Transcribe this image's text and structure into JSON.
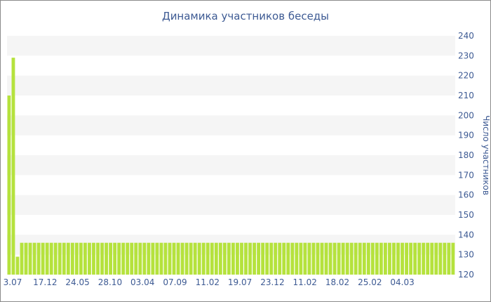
{
  "chart_data": {
    "type": "bar",
    "title": "Динамика участников беседы",
    "xlabel": "",
    "ylabel": "Число участников",
    "ylim": [
      120,
      240
    ],
    "y_ticks": [
      120,
      130,
      140,
      150,
      160,
      170,
      180,
      190,
      200,
      210,
      220,
      230,
      240
    ],
    "x_tick_labels": [
      "3.07",
      "17.12",
      "24.05",
      "28.10",
      "03.04",
      "07.09",
      "11.02",
      "19.07",
      "23.12",
      "11.02",
      "18.02",
      "25.02",
      "04.03"
    ],
    "y_axis_side": "right",
    "grid": "alternating horizontal bands",
    "bar_color": "#b5e23d",
    "band_color": "#f5f5f5",
    "text_color": "#3d5a93",
    "series": [
      {
        "values": [
          210,
          229,
          129,
          136,
          136,
          136,
          136,
          136,
          136,
          136,
          136,
          136,
          136,
          136,
          136,
          136,
          136,
          136,
          136,
          136,
          136,
          136,
          136,
          136,
          136,
          136,
          136,
          136,
          136,
          136,
          136,
          136,
          136,
          136,
          136,
          136,
          136,
          136,
          136,
          136,
          136,
          136,
          136,
          136,
          136,
          136,
          136,
          136,
          136,
          136,
          136,
          136,
          136,
          136,
          136,
          136,
          136,
          136,
          136,
          136,
          136,
          136,
          136,
          136,
          136,
          136,
          136,
          136,
          136,
          136,
          136,
          136,
          136,
          136,
          136,
          136,
          136,
          136,
          136,
          136,
          136,
          136,
          136,
          136,
          136,
          136,
          136,
          136,
          136,
          136,
          136,
          136,
          136,
          136,
          136,
          136,
          136,
          136,
          136,
          136,
          136,
          136,
          136,
          136,
          136,
          136
        ]
      }
    ]
  }
}
